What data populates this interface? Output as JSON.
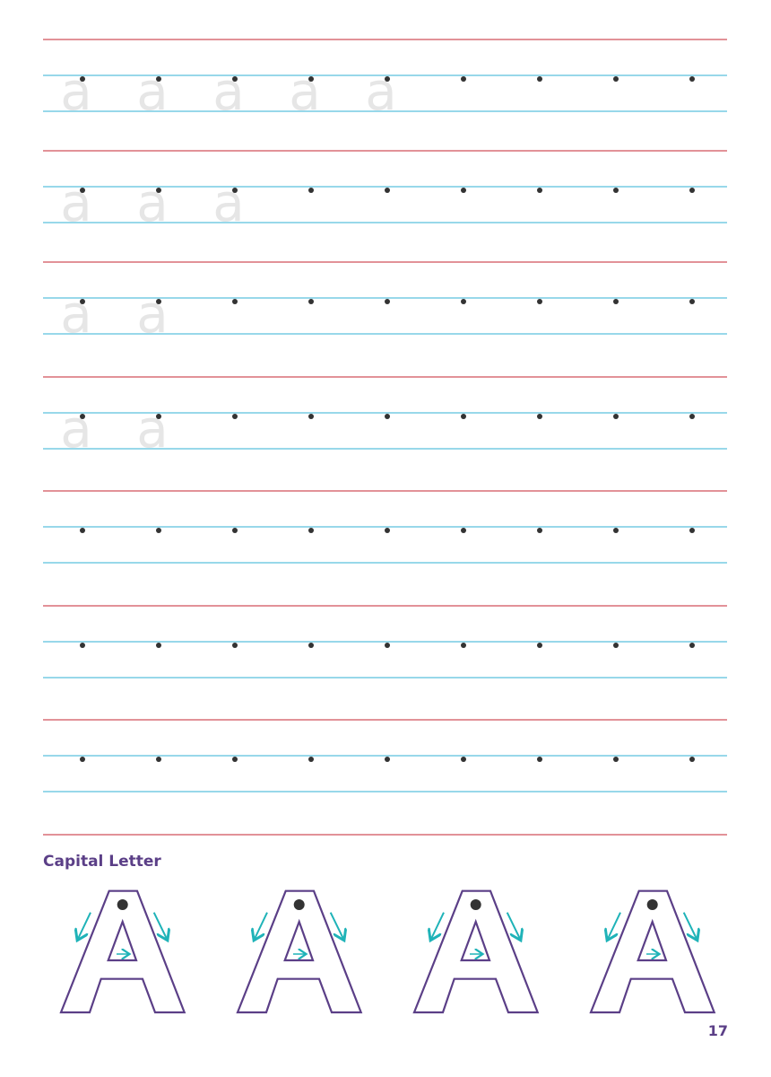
{
  "worksheet": {
    "ghost_letter": "a",
    "dots_per_row": 9,
    "ghost_letters_per_row": [
      5,
      3,
      2,
      2,
      0,
      0,
      0
    ],
    "colors": {
      "baseline_red": "#d0505a",
      "guide_blue": "#5bc0de",
      "dot": "#333333",
      "ghost": "#e6e6e6"
    }
  },
  "capital_section": {
    "title": "Capital Letter",
    "letter": "A",
    "count": 4,
    "colors": {
      "outline": "#5b3f87",
      "arrow": "#1fb3b8"
    }
  },
  "page_number": "17"
}
